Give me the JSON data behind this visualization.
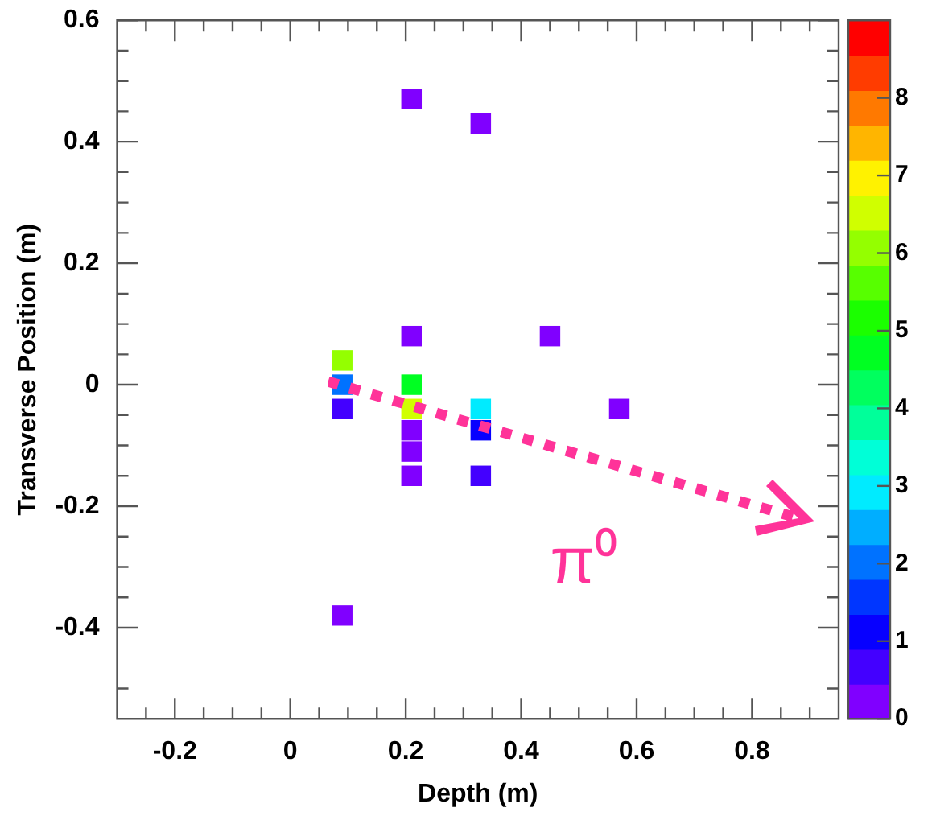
{
  "chart_data": {
    "type": "scatter",
    "xlabel": "Depth (m)",
    "ylabel": "Transverse Position (m)",
    "x": [
      0.09,
      0.09,
      0.09,
      0.09,
      0.21,
      0.21,
      0.21,
      0.21,
      0.21,
      0.21,
      0.21,
      0.33,
      0.33,
      0.33,
      0.33,
      0.45,
      0.57
    ],
    "values": [
      0.04,
      0.0,
      -0.04,
      -0.38,
      0.47,
      0.08,
      0.0,
      -0.04,
      -0.075,
      -0.11,
      -0.15,
      0.43,
      -0.04,
      -0.075,
      -0.15,
      0.08,
      -0.04
    ],
    "cvalues": [
      6.1,
      2.1,
      0.7,
      0.3,
      0.3,
      0.3,
      4.6,
      6.6,
      0.3,
      0.3,
      0.3,
      0.3,
      3.0,
      1.2,
      0.7,
      0.3,
      0.3
    ],
    "marker": "square",
    "xlim": [
      -0.3,
      0.95
    ],
    "xticks": [
      {
        "value": -0.25,
        "label": null
      },
      -0.2,
      {
        "value": -0.15,
        "label": null
      },
      {
        "value": -0.1,
        "label": null
      },
      {
        "value": -0.05,
        "label": null
      },
      0,
      {
        "value": 0.05,
        "label": null
      },
      {
        "value": 0.1,
        "label": null
      },
      {
        "value": 0.15,
        "label": null
      },
      0.2,
      {
        "value": 0.25,
        "label": null
      },
      {
        "value": 0.3,
        "label": null
      },
      {
        "value": 0.35,
        "label": null
      },
      0.4,
      {
        "value": 0.45,
        "label": null
      },
      {
        "value": 0.5,
        "label": null
      },
      {
        "value": 0.55,
        "label": null
      },
      0.6,
      {
        "value": 0.65,
        "label": null
      },
      {
        "value": 0.7,
        "label": null
      },
      {
        "value": 0.75,
        "label": null
      },
      0.8,
      {
        "value": 0.85,
        "label": null
      },
      {
        "value": 0.9,
        "label": null
      }
    ],
    "ylim": [
      -0.55,
      0.6
    ],
    "yticks": [
      {
        "value": -0.5,
        "label": null
      },
      -0.4,
      {
        "value": -0.35,
        "label": null
      },
      {
        "value": -0.3,
        "label": null
      },
      {
        "value": -0.25,
        "label": null
      },
      -0.2,
      {
        "value": -0.15,
        "label": null
      },
      {
        "value": -0.1,
        "label": null
      },
      {
        "value": -0.05,
        "label": null
      },
      0,
      {
        "value": 0.05,
        "label": null
      },
      {
        "value": 0.1,
        "label": null
      },
      {
        "value": 0.15,
        "label": null
      },
      0.2,
      {
        "value": 0.25,
        "label": null
      },
      {
        "value": 0.3,
        "label": null
      },
      {
        "value": 0.35,
        "label": null
      },
      0.4,
      {
        "value": 0.45,
        "label": null
      },
      {
        "value": 0.5,
        "label": null
      },
      {
        "value": 0.55,
        "label": null
      },
      0.6
    ],
    "clim": [
      0,
      9
    ],
    "cticks": [
      0,
      1,
      2,
      3,
      4,
      5,
      6,
      7,
      8
    ],
    "annotations": [
      "π⁰"
    ]
  }
}
